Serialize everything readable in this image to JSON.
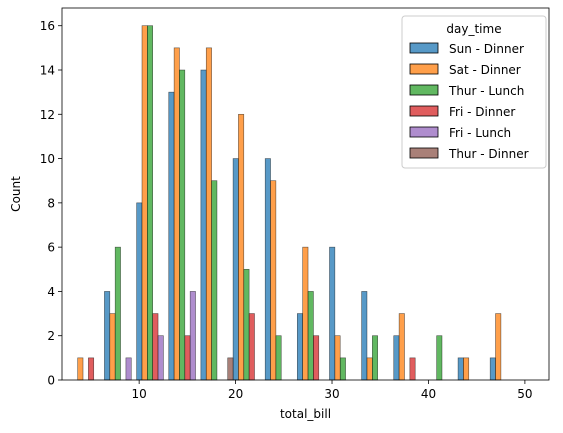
{
  "chart_data": {
    "type": "bar",
    "title": "",
    "xlabel": "total_bill",
    "ylabel": "Count",
    "xlim": [
      2.0,
      52.5
    ],
    "ylim": [
      0,
      16.8
    ],
    "x_ticks": [
      10,
      20,
      30,
      40,
      50
    ],
    "y_ticks": [
      0,
      2,
      4,
      6,
      8,
      10,
      12,
      14,
      16
    ],
    "grid": false,
    "bin_edges": [
      3.07,
      6.4,
      9.74,
      13.07,
      16.4,
      19.74,
      23.07,
      26.4,
      29.74,
      33.07,
      36.4,
      39.74,
      43.07,
      46.4,
      49.74,
      53.07
    ],
    "legend": {
      "title": "day_time",
      "placement": "top-right"
    },
    "series": [
      {
        "name": "Sun - Dinner",
        "color": "#1f77b4",
        "values": [
          0,
          4,
          8,
          13,
          14,
          10,
          10,
          3,
          6,
          4,
          2,
          0,
          1,
          1,
          0
        ]
      },
      {
        "name": "Sat - Dinner",
        "color": "#ff7f0e",
        "values": [
          1,
          3,
          16,
          15,
          15,
          12,
          9,
          6,
          2,
          1,
          3,
          0,
          1,
          3,
          0
        ]
      },
      {
        "name": "Thur - Lunch",
        "color": "#2ca02c",
        "values": [
          0,
          6,
          16,
          14,
          9,
          5,
          2,
          4,
          1,
          2,
          0,
          2,
          0,
          0,
          0
        ]
      },
      {
        "name": "Fri - Dinner",
        "color": "#d62728",
        "values": [
          1,
          0,
          3,
          2,
          0,
          3,
          0,
          2,
          0,
          0,
          1,
          0,
          0,
          0,
          0
        ]
      },
      {
        "name": "Fri - Lunch",
        "color": "#9467bd",
        "values": [
          0,
          1,
          2,
          4,
          0,
          0,
          0,
          0,
          0,
          0,
          0,
          0,
          0,
          0,
          0
        ]
      },
      {
        "name": "Thur - Dinner",
        "color": "#8c564b",
        "values": [
          0,
          0,
          0,
          0,
          1,
          0,
          0,
          0,
          0,
          0,
          0,
          0,
          0,
          0,
          0
        ]
      }
    ]
  }
}
